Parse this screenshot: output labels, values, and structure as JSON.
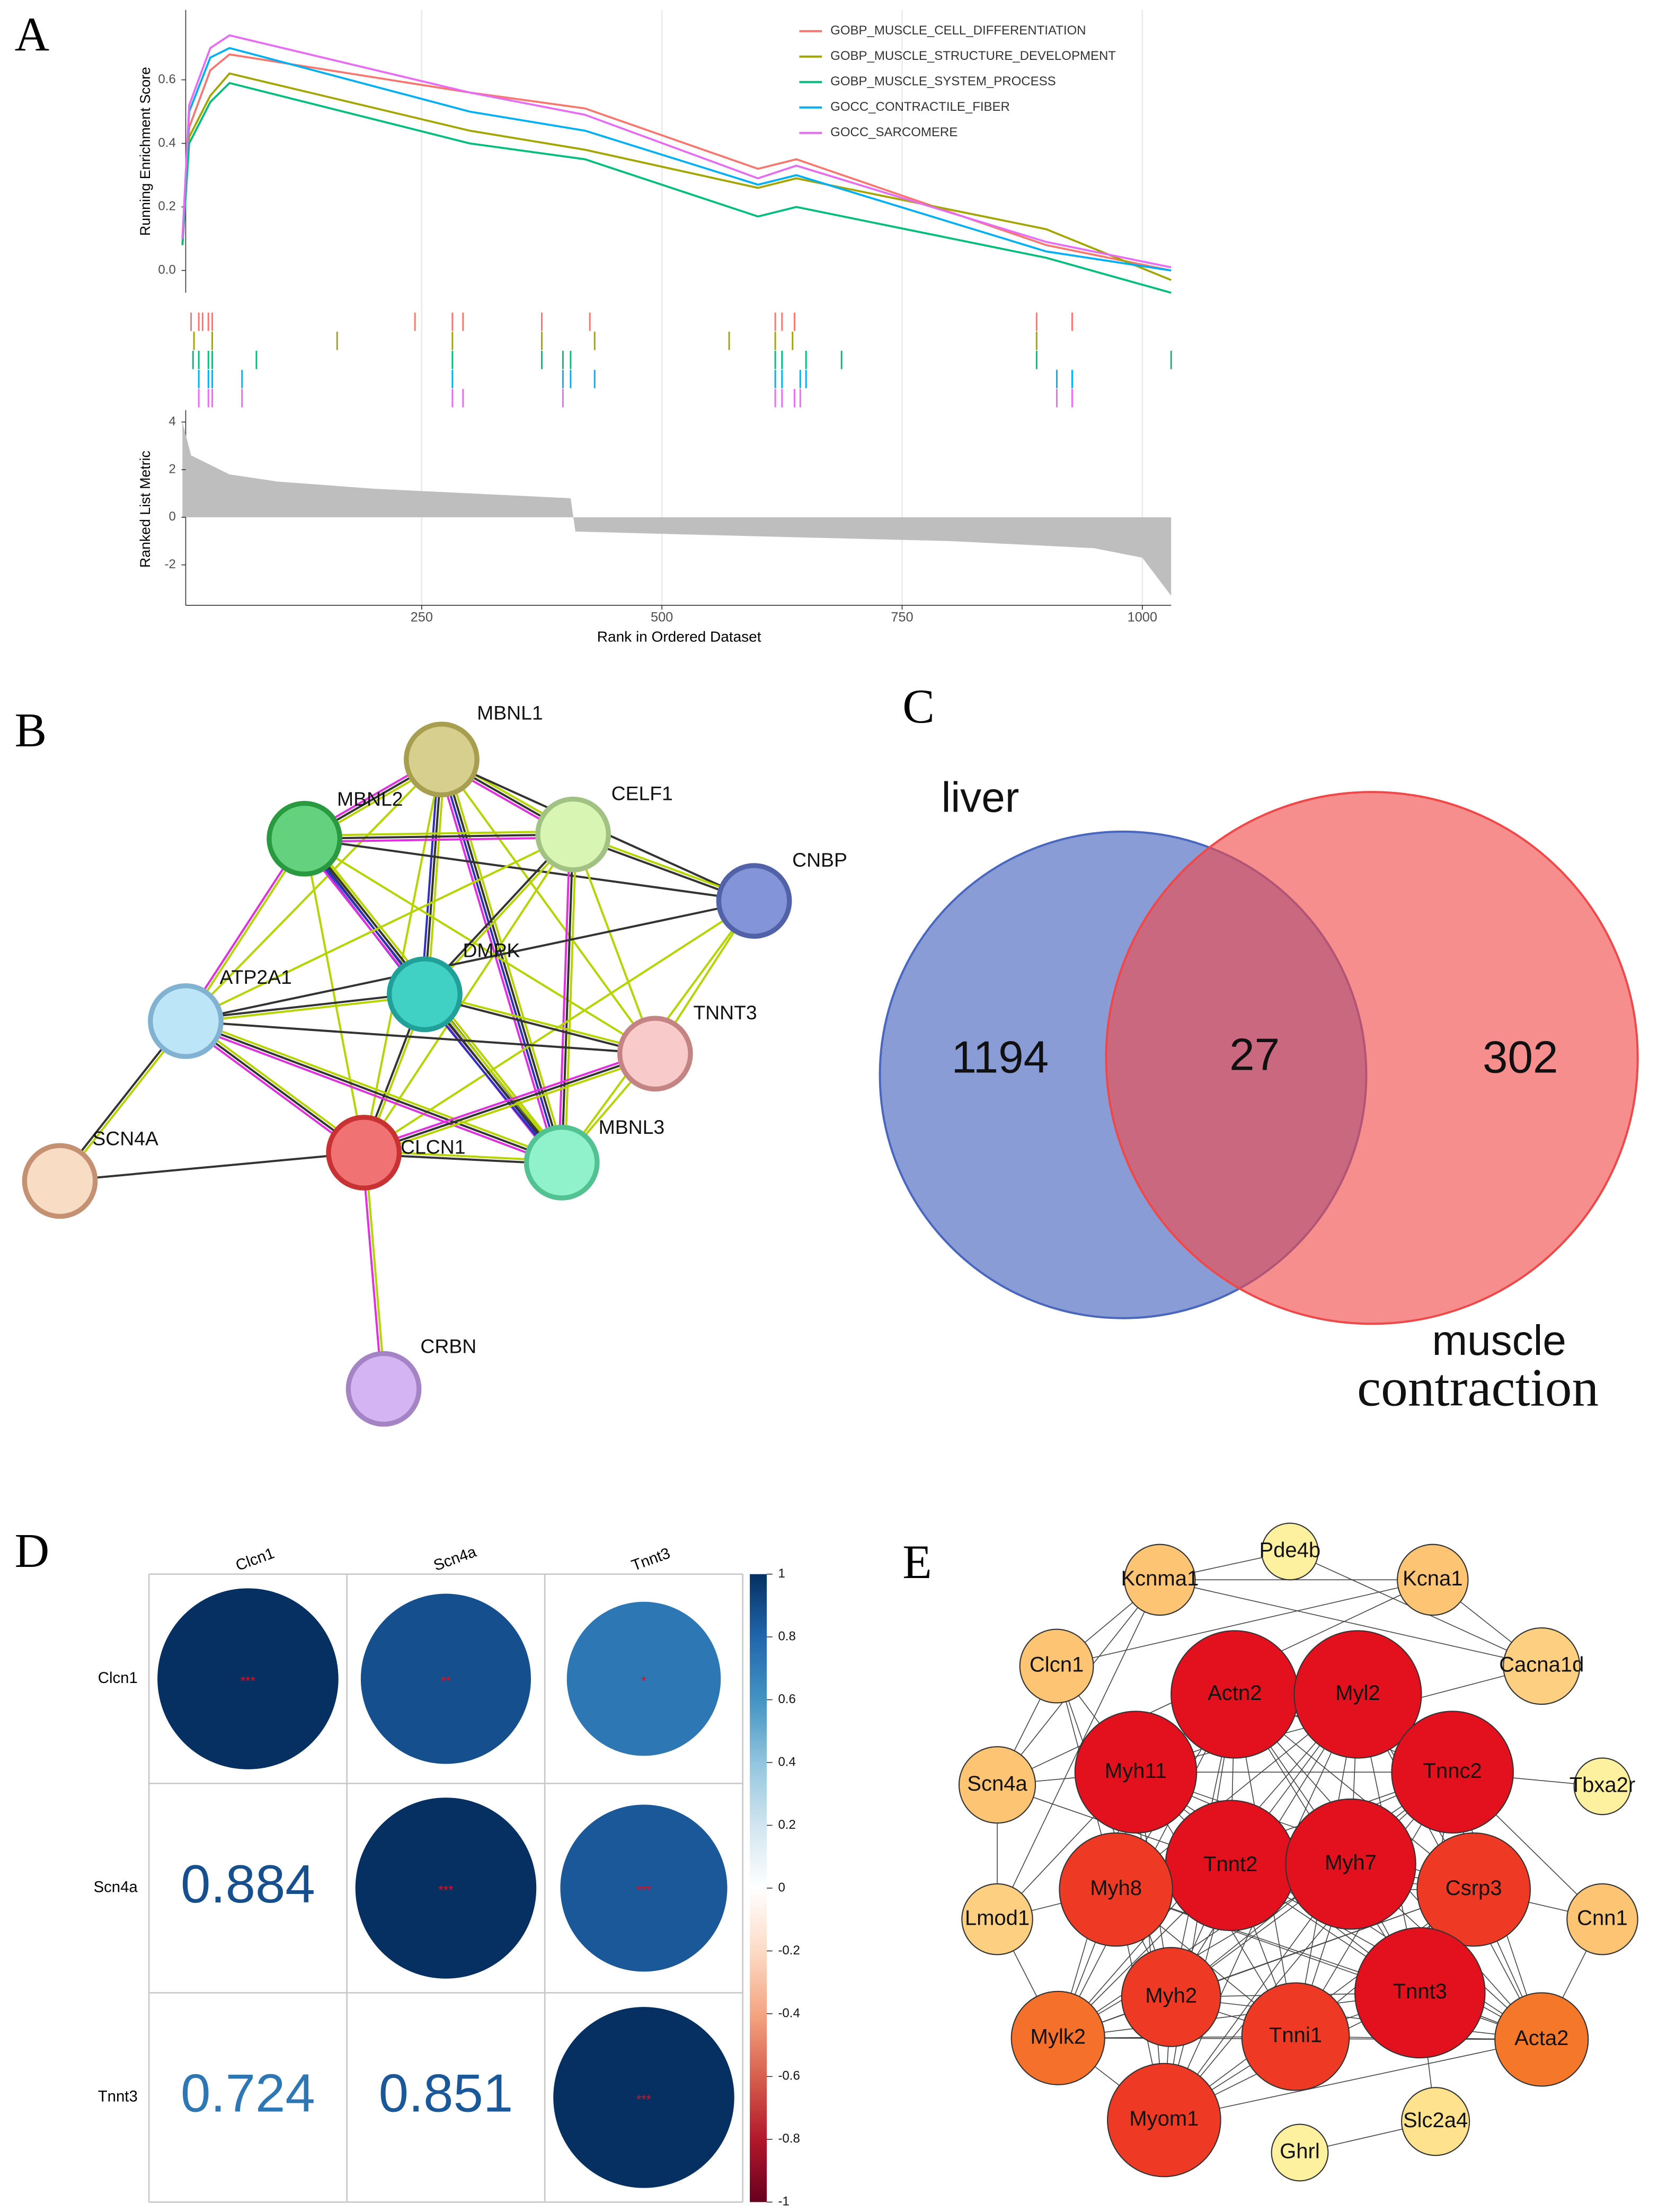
{
  "chart_data": [
    {
      "type": "gsea",
      "label": "A",
      "ylabel": "Running Enrichment Score",
      "xlabel": "Rank in Ordered Dataset",
      "x": [
        1,
        8,
        30,
        50,
        300,
        420,
        600,
        640,
        900,
        1030
      ],
      "series": [
        {
          "name": "GOBP_MUSCLE_CELL_DIFFERENTIATION",
          "color": "#f8766d",
          "values": [
            0.08,
            0.45,
            0.63,
            0.68,
            0.56,
            0.51,
            0.32,
            0.35,
            0.08,
            0.0
          ],
          "hits": [
            10,
            18,
            22,
            28,
            32,
            243,
            282,
            293,
            375,
            425,
            618,
            625,
            638,
            890,
            927
          ]
        },
        {
          "name": "GOBP_MUSCLE_STRUCTURE_DEVELOPMENT",
          "color": "#a3a500",
          "values": [
            0.08,
            0.42,
            0.55,
            0.62,
            0.44,
            0.38,
            0.26,
            0.29,
            0.13,
            -0.03
          ],
          "hits": [
            13,
            32,
            162,
            282,
            375,
            430,
            570,
            618,
            636,
            890
          ]
        },
        {
          "name": "GOBP_MUSCLE_SYSTEM_PROCESS",
          "color": "#00bf7d",
          "values": [
            0.08,
            0.4,
            0.53,
            0.59,
            0.4,
            0.35,
            0.17,
            0.2,
            0.04,
            -0.07
          ],
          "hits": [
            12,
            18,
            28,
            32,
            78,
            282,
            375,
            397,
            405,
            618,
            625,
            650,
            687,
            890,
            1030
          ]
        },
        {
          "name": "GOCC_CONTRACTILE_FIBER",
          "color": "#00b0f6",
          "values": [
            0.1,
            0.5,
            0.67,
            0.7,
            0.5,
            0.44,
            0.27,
            0.3,
            0.06,
            0.0
          ],
          "hits": [
            18,
            28,
            32,
            63,
            282,
            397,
            405,
            430,
            618,
            625,
            644,
            650,
            911,
            927
          ]
        },
        {
          "name": "GOCC_SARCOMERE",
          "color": "#e76bf3",
          "values": [
            0.1,
            0.52,
            0.7,
            0.74,
            0.56,
            0.49,
            0.29,
            0.33,
            0.09,
            0.01
          ],
          "hits": [
            18,
            28,
            32,
            63,
            282,
            293,
            397,
            618,
            625,
            638,
            644,
            911,
            927
          ]
        }
      ],
      "xlim": [
        0,
        1030
      ],
      "xticks": [
        250,
        500,
        750,
        1000
      ],
      "ylim": [
        -0.07,
        0.82
      ],
      "yticks": [
        {
          "value": 0,
          "label": "0.0"
        },
        0.2,
        0.4,
        0.6
      ],
      "grid": true,
      "legend": "top-right",
      "metric": {
        "ylabel": "Ranked List Metric",
        "color": "#bebebe",
        "x": [
          1,
          10,
          50,
          100,
          200,
          405,
          410,
          600,
          800,
          950,
          1000,
          1030
        ],
        "values": [
          4,
          2.6,
          1.8,
          1.5,
          1.2,
          0.8,
          -0.6,
          -0.8,
          -1.0,
          -1.3,
          -1.7,
          -3.3
        ],
        "ylim": [
          -3.7,
          4.5
        ],
        "yticks": [
          -2,
          0,
          2,
          4
        ]
      }
    },
    {
      "type": "venn",
      "label": "C",
      "sets": [
        {
          "name": "liver",
          "color": "#4a67c0",
          "value": 1194
        },
        {
          "name": [
            "muscle",
            "contraction"
          ],
          "color": "#f04848",
          "value": 302
        }
      ],
      "intersection": 27
    },
    {
      "type": "corrplot",
      "label": "D",
      "variables": [
        "Clcn1",
        "Scn4a",
        "Tnnt3"
      ],
      "values": [
        [
          1,
          0.884,
          0.724
        ],
        [
          0.884,
          1,
          0.851
        ],
        [
          0.724,
          0.851,
          1
        ]
      ],
      "stars": [
        [
          "***",
          "**",
          "*"
        ],
        [
          null,
          "***",
          "***"
        ],
        [
          null,
          null,
          "***"
        ]
      ],
      "colorscale": [
        "#67001f",
        "#b2182b",
        "#d6604d",
        "#f4a582",
        "#fddbc7",
        "#ffffff",
        "#d1e5f0",
        "#92c5de",
        "#4393c3",
        "#2166ac",
        "#053061"
      ],
      "clim": [
        -1,
        1
      ],
      "cticks": [
        1,
        0.8,
        0.6,
        0.4,
        0.2,
        0,
        -0.2,
        -0.4,
        -0.6,
        -0.8,
        -1
      ]
    }
  ],
  "network_b": {
    "label": "B",
    "nodes": [
      "MBNL1",
      "MBNL2",
      "CELF1",
      "CNBP",
      "DMPK",
      "ATP2A1",
      "TNNT3",
      "SCN4A",
      "CLCN1",
      "MBNL3",
      "CRBN"
    ]
  },
  "network_e": {
    "label": "E",
    "nodes": [
      "Pde4b",
      "Kcnma1",
      "Kcna1",
      "Clcn1",
      "Cacna1d",
      "Actn2",
      "Myl2",
      "Myh11",
      "Tnnc2",
      "Scn4a",
      "Tbxa2r",
      "Tnnt2",
      "Myh7",
      "Myh8",
      "Csrp3",
      "Lmod1",
      "Cnn1",
      "Myh2",
      "Tnni1",
      "Tnnt3",
      "Mylk2",
      "Acta2",
      "Myom1",
      "Ghrl",
      "Slc2a4"
    ]
  }
}
